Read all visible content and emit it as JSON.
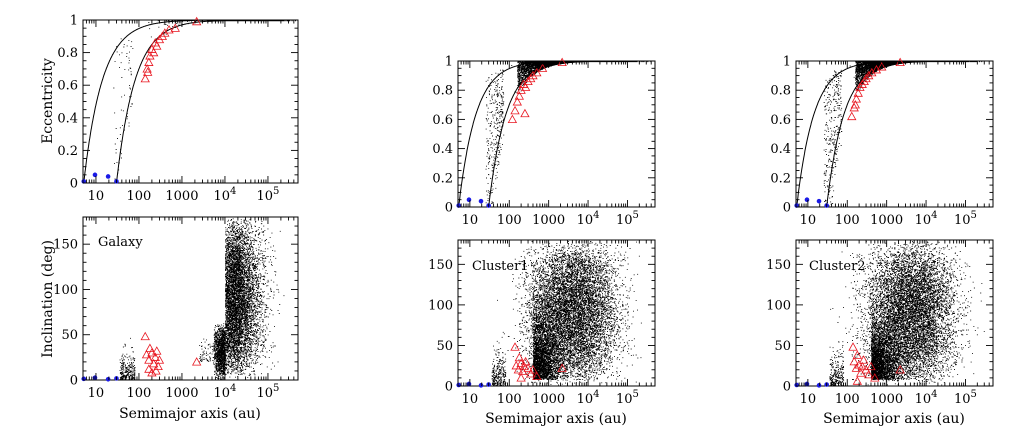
{
  "colors": {
    "background": "#ffffff",
    "particles": "#000000",
    "triangles": "#e8141e",
    "planets": "#1a1ae6"
  },
  "labels": {
    "ecc_axis": "Eccentricity",
    "inc_axis": "Inclination (deg)",
    "x_axis": "Semimajor axis (au)"
  },
  "chart_data": [
    {
      "id": "galaxy-eccentricity",
      "type": "scatter",
      "xlabel": "",
      "ylabel": "Eccentricity",
      "xscale": "log",
      "xlim": [
        5,
        500000
      ],
      "ylim": [
        0,
        1
      ],
      "x_ticks": [
        {
          "value": 10,
          "label": "10"
        },
        {
          "value": 100,
          "label": "100"
        },
        {
          "value": 1000,
          "label": "1000"
        },
        {
          "value": 10000,
          "label": "10^4"
        },
        {
          "value": 100000,
          "label": "10^5"
        }
      ],
      "y_ticks": [
        {
          "value": 0,
          "label": "0"
        },
        {
          "value": 0.2,
          "label": "0.2"
        },
        {
          "value": 0.4,
          "label": "0.4"
        },
        {
          "value": 0.6,
          "label": "0.6"
        },
        {
          "value": 0.8,
          "label": "0.8"
        },
        {
          "value": 1,
          "label": "1"
        }
      ],
      "curves": [
        {
          "q": 5.2
        },
        {
          "q": 30
        }
      ],
      "red_triangles": [
        [
          140,
          0.64
        ],
        [
          155,
          0.7
        ],
        [
          170,
          0.74
        ],
        [
          180,
          0.78
        ],
        [
          200,
          0.82
        ],
        [
          220,
          0.8
        ],
        [
          240,
          0.86
        ],
        [
          260,
          0.84
        ],
        [
          300,
          0.88
        ],
        [
          350,
          0.9
        ],
        [
          400,
          0.92
        ],
        [
          500,
          0.94
        ],
        [
          700,
          0.95
        ],
        [
          2200,
          0.99
        ],
        [
          160,
          0.68
        ]
      ],
      "blue_points": [
        [
          5.2,
          0.01
        ],
        [
          9.5,
          0.05
        ],
        [
          19.2,
          0.04
        ],
        [
          30,
          0.01
        ]
      ]
    },
    {
      "id": "galaxy-inclination",
      "type": "scatter",
      "title": "Galaxy",
      "xlabel": "Semimajor axis (au)",
      "ylabel": "Inclination (deg)",
      "xscale": "log",
      "xlim": [
        5,
        500000
      ],
      "ylim": [
        0,
        180
      ],
      "x_ticks": [
        {
          "value": 10,
          "label": "10"
        },
        {
          "value": 100,
          "label": "100"
        },
        {
          "value": 1000,
          "label": "1000"
        },
        {
          "value": 10000,
          "label": "10^4"
        },
        {
          "value": 100000,
          "label": "10^5"
        }
      ],
      "y_ticks": [
        {
          "value": 0,
          "label": "0"
        },
        {
          "value": 50,
          "label": "50"
        },
        {
          "value": 100,
          "label": "100"
        },
        {
          "value": 150,
          "label": "150"
        }
      ],
      "red_triangles": [
        [
          140,
          48
        ],
        [
          150,
          28
        ],
        [
          170,
          22
        ],
        [
          180,
          35
        ],
        [
          200,
          30
        ],
        [
          220,
          18
        ],
        [
          240,
          25
        ],
        [
          260,
          32
        ],
        [
          280,
          15
        ],
        [
          300,
          22
        ],
        [
          170,
          12
        ],
        [
          200,
          8
        ],
        [
          250,
          10
        ],
        [
          2200,
          20
        ]
      ],
      "blue_points": [
        [
          5.2,
          1.3
        ],
        [
          9.5,
          2.5
        ],
        [
          19.2,
          0.8
        ],
        [
          30,
          1.8
        ]
      ]
    },
    {
      "id": "cluster1-eccentricity",
      "type": "scatter",
      "xlabel": "",
      "ylabel": "",
      "xscale": "log",
      "xlim": [
        5,
        500000
      ],
      "ylim": [
        0,
        1
      ],
      "x_ticks": [
        {
          "value": 10,
          "label": "10"
        },
        {
          "value": 100,
          "label": "100"
        },
        {
          "value": 1000,
          "label": "1000"
        },
        {
          "value": 10000,
          "label": "10^4"
        },
        {
          "value": 100000,
          "label": "10^5"
        }
      ],
      "y_ticks": [
        {
          "value": 0,
          "label": "0"
        },
        {
          "value": 0.2,
          "label": "0.2"
        },
        {
          "value": 0.4,
          "label": "0.4"
        },
        {
          "value": 0.6,
          "label": "0.6"
        },
        {
          "value": 0.8,
          "label": "0.8"
        },
        {
          "value": 1,
          "label": "1"
        }
      ],
      "curves": [
        {
          "q": 5.2
        },
        {
          "q": 30
        }
      ],
      "red_triangles": [
        [
          120,
          0.6
        ],
        [
          140,
          0.66
        ],
        [
          160,
          0.72
        ],
        [
          180,
          0.76
        ],
        [
          200,
          0.8
        ],
        [
          230,
          0.84
        ],
        [
          260,
          0.82
        ],
        [
          300,
          0.86
        ],
        [
          350,
          0.88
        ],
        [
          400,
          0.9
        ],
        [
          500,
          0.92
        ],
        [
          700,
          0.95
        ],
        [
          2200,
          0.99
        ],
        [
          250,
          0.64
        ]
      ],
      "blue_points": [
        [
          5.2,
          0.01
        ],
        [
          9.5,
          0.05
        ],
        [
          19.2,
          0.04
        ],
        [
          30,
          0.01
        ]
      ]
    },
    {
      "id": "cluster1-inclination",
      "type": "scatter",
      "title": "Cluster1",
      "xlabel": "Semimajor axis (au)",
      "ylabel": "",
      "xscale": "log",
      "xlim": [
        5,
        500000
      ],
      "ylim": [
        0,
        180
      ],
      "x_ticks": [
        {
          "value": 10,
          "label": "10"
        },
        {
          "value": 100,
          "label": "100"
        },
        {
          "value": 1000,
          "label": "1000"
        },
        {
          "value": 10000,
          "label": "10^4"
        },
        {
          "value": 100000,
          "label": "10^5"
        }
      ],
      "y_ticks": [
        {
          "value": 0,
          "label": "0"
        },
        {
          "value": 50,
          "label": "50"
        },
        {
          "value": 100,
          "label": "100"
        },
        {
          "value": 150,
          "label": "150"
        }
      ],
      "red_triangles": [
        [
          140,
          48
        ],
        [
          150,
          25
        ],
        [
          170,
          20
        ],
        [
          180,
          35
        ],
        [
          200,
          28
        ],
        [
          220,
          18
        ],
        [
          240,
          24
        ],
        [
          260,
          30
        ],
        [
          300,
          22
        ],
        [
          350,
          15
        ],
        [
          400,
          20
        ],
        [
          500,
          12
        ],
        [
          200,
          10
        ],
        [
          2200,
          22
        ]
      ],
      "blue_points": [
        [
          5.2,
          1.3
        ],
        [
          9.5,
          2.5
        ],
        [
          19.2,
          0.8
        ],
        [
          30,
          1.8
        ]
      ]
    },
    {
      "id": "cluster2-eccentricity",
      "type": "scatter",
      "xlabel": "",
      "ylabel": "",
      "xscale": "log",
      "xlim": [
        5,
        500000
      ],
      "ylim": [
        0,
        1
      ],
      "x_ticks": [
        {
          "value": 10,
          "label": "10"
        },
        {
          "value": 100,
          "label": "100"
        },
        {
          "value": 1000,
          "label": "1000"
        },
        {
          "value": 10000,
          "label": "10^4"
        },
        {
          "value": 100000,
          "label": "10^5"
        }
      ],
      "y_ticks": [
        {
          "value": 0,
          "label": "0"
        },
        {
          "value": 0.2,
          "label": "0.2"
        },
        {
          "value": 0.4,
          "label": "0.4"
        },
        {
          "value": 0.6,
          "label": "0.6"
        },
        {
          "value": 0.8,
          "label": "0.8"
        },
        {
          "value": 1,
          "label": "1"
        }
      ],
      "curves": [
        {
          "q": 5.2
        },
        {
          "q": 30
        }
      ],
      "red_triangles": [
        [
          130,
          0.62
        ],
        [
          150,
          0.68
        ],
        [
          170,
          0.74
        ],
        [
          190,
          0.78
        ],
        [
          210,
          0.82
        ],
        [
          240,
          0.84
        ],
        [
          270,
          0.86
        ],
        [
          300,
          0.88
        ],
        [
          350,
          0.9
        ],
        [
          420,
          0.92
        ],
        [
          550,
          0.94
        ],
        [
          750,
          0.96
        ],
        [
          2200,
          0.99
        ],
        [
          160,
          0.7
        ]
      ],
      "blue_points": [
        [
          5.2,
          0.01
        ],
        [
          9.5,
          0.05
        ],
        [
          19.2,
          0.04
        ],
        [
          30,
          0.01
        ]
      ]
    },
    {
      "id": "cluster2-inclination",
      "type": "scatter",
      "title": "Cluster2",
      "xlabel": "Semimajor axis (au)",
      "ylabel": "",
      "xscale": "log",
      "xlim": [
        5,
        500000
      ],
      "ylim": [
        0,
        180
      ],
      "x_ticks": [
        {
          "value": 10,
          "label": "10"
        },
        {
          "value": 100,
          "label": "100"
        },
        {
          "value": 1000,
          "label": "1000"
        },
        {
          "value": 10000,
          "label": "10^4"
        },
        {
          "value": 100000,
          "label": "10^5"
        }
      ],
      "y_ticks": [
        {
          "value": 0,
          "label": "0"
        },
        {
          "value": 50,
          "label": "50"
        },
        {
          "value": 100,
          "label": "100"
        },
        {
          "value": 150,
          "label": "150"
        }
      ],
      "red_triangles": [
        [
          140,
          48
        ],
        [
          150,
          30
        ],
        [
          170,
          22
        ],
        [
          180,
          38
        ],
        [
          200,
          26
        ],
        [
          220,
          16
        ],
        [
          240,
          24
        ],
        [
          260,
          32
        ],
        [
          300,
          20
        ],
        [
          350,
          14
        ],
        [
          400,
          24
        ],
        [
          500,
          10
        ],
        [
          180,
          6
        ],
        [
          2200,
          20
        ]
      ],
      "blue_points": [
        [
          5.2,
          1.3
        ],
        [
          9.5,
          2.5
        ],
        [
          19.2,
          0.8
        ],
        [
          30,
          1.8
        ]
      ]
    }
  ]
}
